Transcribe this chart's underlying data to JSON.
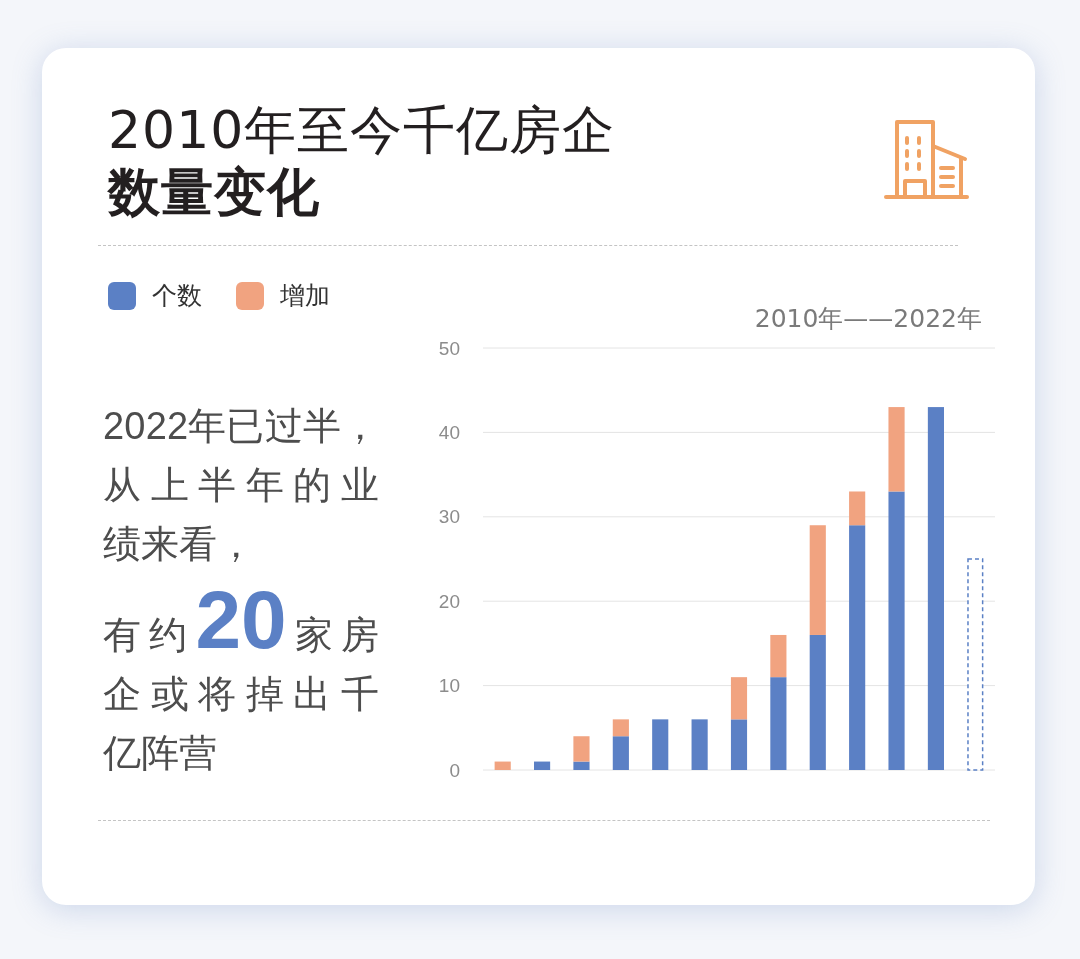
{
  "chart_data": {
    "type": "bar",
    "title": "2010年至今千亿房企**数量变化**",
    "subtitle": "2010年——2022年",
    "categories": [
      null,
      null,
      null,
      null,
      null,
      null,
      null,
      null,
      null,
      null,
      null,
      null,
      null
    ],
    "stacked": true,
    "series": [
      {
        "name": "个数",
        "color": "#5b80c5",
        "values": [
          0,
          1,
          1,
          4,
          6,
          6,
          6,
          11,
          16,
          29,
          33,
          43,
          null
        ]
      },
      {
        "name": "增加",
        "color": "#f1a380",
        "values": [
          1,
          0,
          3,
          2,
          0,
          0,
          5,
          5,
          13,
          4,
          10,
          0,
          null
        ]
      },
      {
        "color": "#5b80c5",
        "line_style": "dashed",
        "values": [
          null,
          null,
          null,
          null,
          null,
          null,
          null,
          null,
          null,
          null,
          null,
          null,
          25
        ]
      }
    ],
    "ylim": [
      0,
      50
    ],
    "yticks": [
      0,
      10,
      20,
      30,
      40,
      50
    ],
    "grid": "y",
    "legend": "top left",
    "annotations": [
      "2022年已过半，从上半年的业绩来看，",
      "有约**20**家房企或将掉出千亿阵营"
    ]
  }
}
